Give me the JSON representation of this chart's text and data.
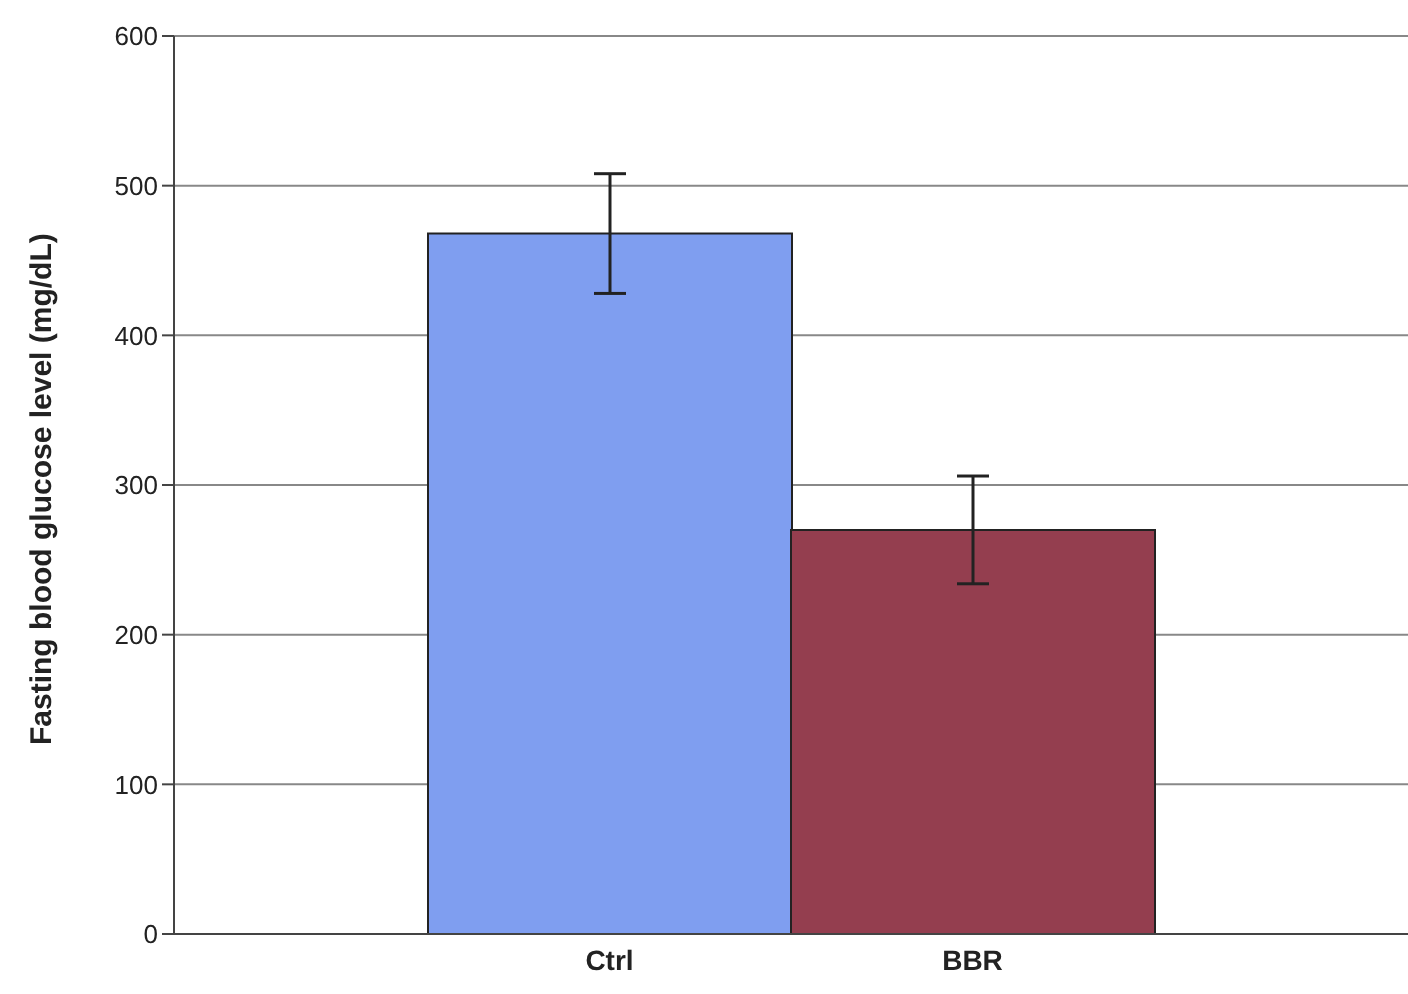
{
  "chart_data": {
    "type": "bar",
    "ylabel": "Fasting blood glucose level (mg/dL)",
    "categories": [
      "Ctrl",
      "BBR"
    ],
    "values": [
      468,
      270
    ],
    "colors": [
      "#7f9ef0",
      "#943e4f"
    ],
    "errors": [
      40,
      36
    ],
    "ylim": [
      0,
      600
    ],
    "yticks": [
      0,
      100,
      200,
      300,
      400,
      500,
      600
    ],
    "grid": "y"
  }
}
